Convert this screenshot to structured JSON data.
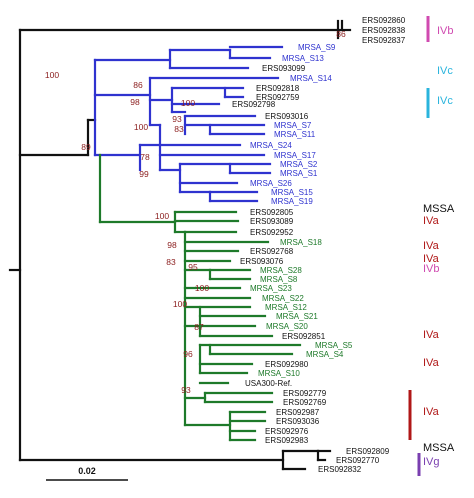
{
  "colors": {
    "black": "#111111",
    "blue": "#2f33cf",
    "green": "#1e7a2a",
    "bootstrap": "#8a1c1c",
    "pink": "#d04ab0",
    "cyan": "#2ab4dd",
    "red": "#b01818",
    "purple": "#7a3fb0"
  },
  "scale_bar": {
    "label": "0.02"
  },
  "leaves": [
    {
      "name": "ERS092860",
      "color": "black"
    },
    {
      "name": "ERS092838",
      "color": "black"
    },
    {
      "name": "ERS092837",
      "color": "black"
    },
    {
      "name": "MRSA_S9",
      "color": "blue"
    },
    {
      "name": "MRSA_S13",
      "color": "blue"
    },
    {
      "name": "ERS093099",
      "color": "black"
    },
    {
      "name": "MRSA_S14",
      "color": "blue"
    },
    {
      "name": "ERS092818",
      "color": "black"
    },
    {
      "name": "ERS092759",
      "color": "black"
    },
    {
      "name": "ERS092798",
      "color": "black"
    },
    {
      "name": "ERS093016",
      "color": "black"
    },
    {
      "name": "MRSA_S7",
      "color": "blue"
    },
    {
      "name": "MRSA_S11",
      "color": "blue"
    },
    {
      "name": "MRSA_S24",
      "color": "blue"
    },
    {
      "name": "MRSA_S17",
      "color": "blue"
    },
    {
      "name": "MRSA_S2",
      "color": "blue"
    },
    {
      "name": "MRSA_S1",
      "color": "blue"
    },
    {
      "name": "MRSA_S26",
      "color": "blue"
    },
    {
      "name": "MRSA_S15",
      "color": "blue"
    },
    {
      "name": "MRSA_S19",
      "color": "blue"
    },
    {
      "name": "ERS092805",
      "color": "black"
    },
    {
      "name": "ERS093089",
      "color": "black"
    },
    {
      "name": "ERS092952",
      "color": "black"
    },
    {
      "name": "MRSA_S18",
      "color": "green"
    },
    {
      "name": "ERS092768",
      "color": "black"
    },
    {
      "name": "ERS093076",
      "color": "black"
    },
    {
      "name": "MRSA_S28",
      "color": "green"
    },
    {
      "name": "MRSA_S8",
      "color": "green"
    },
    {
      "name": "MRSA_S23",
      "color": "green"
    },
    {
      "name": "MRSA_S22",
      "color": "green"
    },
    {
      "name": "MRSA_S12",
      "color": "green"
    },
    {
      "name": "MRSA_S21",
      "color": "green"
    },
    {
      "name": "MRSA_S20",
      "color": "green"
    },
    {
      "name": "ERS092851",
      "color": "black"
    },
    {
      "name": "MRSA_S5",
      "color": "green"
    },
    {
      "name": "MRSA_S4",
      "color": "green"
    },
    {
      "name": "ERS092980",
      "color": "black"
    },
    {
      "name": "MRSA_S10",
      "color": "green"
    },
    {
      "name": "USA300-Ref.",
      "color": "black"
    },
    {
      "name": "ERS092779",
      "color": "black"
    },
    {
      "name": "ERS092769",
      "color": "black"
    },
    {
      "name": "ERS092987",
      "color": "black"
    },
    {
      "name": "ERS093036",
      "color": "black"
    },
    {
      "name": "ERS092976",
      "color": "black"
    },
    {
      "name": "ERS092983",
      "color": "black"
    },
    {
      "name": "ERS092809",
      "color": "black"
    },
    {
      "name": "ERS092770",
      "color": "black"
    },
    {
      "name": "ERS092832",
      "color": "black"
    }
  ],
  "bootstrap_values": [
    "86",
    "100",
    "86",
    "98",
    "100",
    "93",
    "83",
    "100",
    "78",
    "99",
    "89",
    "100",
    "98",
    "83",
    "95",
    "100",
    "100",
    "87",
    "96",
    "93"
  ],
  "annotations": [
    {
      "text": "IVb",
      "color": "pink"
    },
    {
      "text": "IVc",
      "color": "cyan"
    },
    {
      "text": "IVc",
      "color": "cyan"
    },
    {
      "text": "MSSA",
      "color": "black"
    },
    {
      "text": "IVa",
      "color": "red"
    },
    {
      "text": "IVa",
      "color": "red"
    },
    {
      "text": "IVa",
      "color": "red"
    },
    {
      "text": "IVb",
      "color": "pink"
    },
    {
      "text": "IVa",
      "color": "red"
    },
    {
      "text": "IVa",
      "color": "red"
    },
    {
      "text": "IVa",
      "color": "red"
    },
    {
      "text": "MSSA",
      "color": "black"
    },
    {
      "text": "IVg",
      "color": "purple"
    }
  ]
}
